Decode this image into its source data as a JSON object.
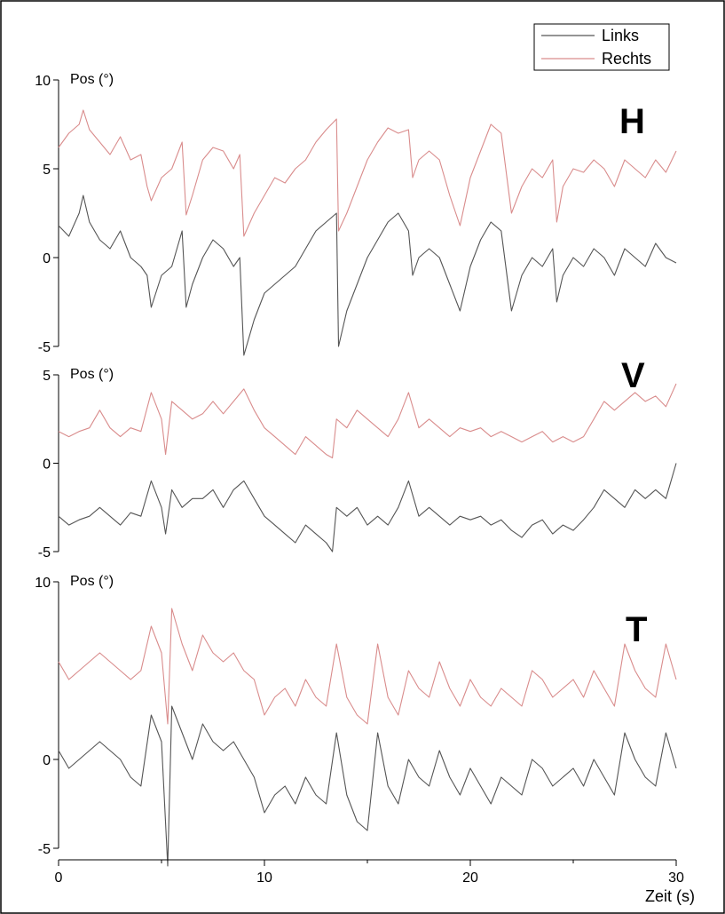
{
  "chart_data": {
    "type": "line",
    "xlabel": "Zeit (s)",
    "xlim": [
      0,
      30
    ],
    "xticks": [
      "0",
      "10",
      "20",
      "30"
    ],
    "legend": {
      "placement": "top-right",
      "entries": [
        {
          "name": "Links",
          "color": "#555555"
        },
        {
          "name": "Rechts",
          "color": "#d98c8c"
        }
      ]
    },
    "panels": [
      {
        "letter": "H",
        "ylabel": "Pos (°)",
        "ylim": [
          -5,
          10
        ],
        "yticks": [
          "-5",
          "0",
          "5",
          "10"
        ],
        "series": [
          {
            "name": "Rechts",
            "x": [
              0,
              0.5,
              1.0,
              1.2,
              1.5,
              2.0,
              2.5,
              3.0,
              3.5,
              4.0,
              4.3,
              4.5,
              5.0,
              5.5,
              6.0,
              6.2,
              6.5,
              7.0,
              7.5,
              8.0,
              8.5,
              8.8,
              9.0,
              9.5,
              10.0,
              10.5,
              11.0,
              11.5,
              12.0,
              12.5,
              13.0,
              13.5,
              13.6,
              14.0,
              14.5,
              15.0,
              15.5,
              16.0,
              16.5,
              17.0,
              17.2,
              17.5,
              18.0,
              18.5,
              19.0,
              19.5,
              20.0,
              20.5,
              21.0,
              21.5,
              22.0,
              22.5,
              23.0,
              23.5,
              24.0,
              24.2,
              24.5,
              25.0,
              25.5,
              26.0,
              26.5,
              27.0,
              27.5,
              28.0,
              28.5,
              29.0,
              29.5,
              30.0
            ],
            "y": [
              6.2,
              7.0,
              7.5,
              8.3,
              7.2,
              6.5,
              5.8,
              6.8,
              5.5,
              5.8,
              4.0,
              3.2,
              4.5,
              5.0,
              6.5,
              2.4,
              3.5,
              5.5,
              6.2,
              6.0,
              5.0,
              5.8,
              1.2,
              2.5,
              3.5,
              4.5,
              4.2,
              5.0,
              5.5,
              6.5,
              7.2,
              7.8,
              1.5,
              2.5,
              4.0,
              5.5,
              6.5,
              7.3,
              7.0,
              7.2,
              4.5,
              5.5,
              6.0,
              5.5,
              3.5,
              1.8,
              4.5,
              6.0,
              7.5,
              7.0,
              2.5,
              4.0,
              5.0,
              4.5,
              5.5,
              2.0,
              4.0,
              5.0,
              4.8,
              5.5,
              5.0,
              4.0,
              5.5,
              5.0,
              4.5,
              5.5,
              4.8,
              6.0
            ]
          },
          {
            "name": "Links",
            "x": [
              0,
              0.5,
              1.0,
              1.2,
              1.5,
              2.0,
              2.5,
              3.0,
              3.5,
              4.0,
              4.3,
              4.5,
              5.0,
              5.5,
              6.0,
              6.2,
              6.5,
              7.0,
              7.5,
              8.0,
              8.5,
              8.8,
              9.0,
              9.5,
              10.0,
              10.5,
              11.0,
              11.5,
              12.0,
              12.5,
              13.0,
              13.5,
              13.6,
              14.0,
              14.5,
              15.0,
              15.5,
              16.0,
              16.5,
              17.0,
              17.2,
              17.5,
              18.0,
              18.5,
              19.0,
              19.5,
              20.0,
              20.5,
              21.0,
              21.5,
              22.0,
              22.5,
              23.0,
              23.5,
              24.0,
              24.2,
              24.5,
              25.0,
              25.5,
              26.0,
              26.5,
              27.0,
              27.5,
              28.0,
              28.5,
              29.0,
              29.5,
              30.0
            ],
            "y": [
              1.8,
              1.2,
              2.5,
              3.5,
              2.0,
              1.0,
              0.5,
              1.5,
              0.0,
              -0.5,
              -1.0,
              -2.8,
              -1.0,
              -0.5,
              1.5,
              -2.8,
              -1.5,
              0.0,
              1.0,
              0.5,
              -0.5,
              0.0,
              -5.5,
              -3.5,
              -2.0,
              -1.5,
              -1.0,
              -0.5,
              0.5,
              1.5,
              2.0,
              2.5,
              -5.0,
              -3.0,
              -1.5,
              0.0,
              1.0,
              2.0,
              2.5,
              1.5,
              -1.0,
              0.0,
              0.5,
              0.0,
              -1.5,
              -3.0,
              -0.5,
              1.0,
              2.0,
              1.5,
              -3.0,
              -1.0,
              0.0,
              -0.5,
              0.5,
              -2.5,
              -1.0,
              0.0,
              -0.5,
              0.5,
              0.0,
              -1.0,
              0.5,
              0.0,
              -0.5,
              0.8,
              0.0,
              -0.3
            ]
          }
        ]
      },
      {
        "letter": "V",
        "ylabel": "Pos (°)",
        "ylim": [
          -5,
          5
        ],
        "yticks": [
          "-5",
          "0",
          "5"
        ],
        "series": [
          {
            "name": "Rechts",
            "x": [
              0,
              0.5,
              1.0,
              1.5,
              2.0,
              2.5,
              3.0,
              3.5,
              4.0,
              4.5,
              5.0,
              5.2,
              5.5,
              6.0,
              6.5,
              7.0,
              7.5,
              8.0,
              8.5,
              9.0,
              9.5,
              10.0,
              10.5,
              11.0,
              11.5,
              12.0,
              12.5,
              13.0,
              13.3,
              13.5,
              14.0,
              14.5,
              15.0,
              15.5,
              16.0,
              16.5,
              17.0,
              17.5,
              18.0,
              18.5,
              19.0,
              19.5,
              20.0,
              20.5,
              21.0,
              21.5,
              22.0,
              22.5,
              23.0,
              23.5,
              24.0,
              24.5,
              25.0,
              25.5,
              26.0,
              26.5,
              27.0,
              27.5,
              28.0,
              28.5,
              29.0,
              29.5,
              30.0
            ],
            "y": [
              1.8,
              1.5,
              1.8,
              2.0,
              3.0,
              2.0,
              1.5,
              2.0,
              1.8,
              4.0,
              2.5,
              0.5,
              3.5,
              3.0,
              2.5,
              2.8,
              3.5,
              2.8,
              3.5,
              4.2,
              3.0,
              2.0,
              1.5,
              1.0,
              0.5,
              1.5,
              1.0,
              0.5,
              0.3,
              2.5,
              2.0,
              3.0,
              2.5,
              2.0,
              1.5,
              2.5,
              4.0,
              2.0,
              2.5,
              2.0,
              1.5,
              2.0,
              1.8,
              2.0,
              1.5,
              1.8,
              1.5,
              1.2,
              1.5,
              1.8,
              1.2,
              1.5,
              1.2,
              1.5,
              2.5,
              3.5,
              3.0,
              3.5,
              4.0,
              3.5,
              3.8,
              3.2,
              4.5
            ]
          },
          {
            "name": "Links",
            "x": [
              0,
              0.5,
              1.0,
              1.5,
              2.0,
              2.5,
              3.0,
              3.5,
              4.0,
              4.5,
              5.0,
              5.2,
              5.5,
              6.0,
              6.5,
              7.0,
              7.5,
              8.0,
              8.5,
              9.0,
              9.5,
              10.0,
              10.5,
              11.0,
              11.5,
              12.0,
              12.5,
              13.0,
              13.3,
              13.5,
              14.0,
              14.5,
              15.0,
              15.5,
              16.0,
              16.5,
              17.0,
              17.5,
              18.0,
              18.5,
              19.0,
              19.5,
              20.0,
              20.5,
              21.0,
              21.5,
              22.0,
              22.5,
              23.0,
              23.5,
              24.0,
              24.5,
              25.0,
              25.5,
              26.0,
              26.5,
              27.0,
              27.5,
              28.0,
              28.5,
              29.0,
              29.5,
              30.0
            ],
            "y": [
              -3.0,
              -3.5,
              -3.2,
              -3.0,
              -2.5,
              -3.0,
              -3.5,
              -2.8,
              -3.0,
              -1.0,
              -2.5,
              -4.0,
              -1.5,
              -2.5,
              -2.0,
              -2.0,
              -1.5,
              -2.5,
              -1.5,
              -1.0,
              -2.0,
              -3.0,
              -3.5,
              -4.0,
              -4.5,
              -3.5,
              -4.0,
              -4.5,
              -5.0,
              -2.5,
              -3.0,
              -2.5,
              -3.5,
              -3.0,
              -3.5,
              -2.5,
              -1.0,
              -3.0,
              -2.5,
              -3.0,
              -3.5,
              -3.0,
              -3.2,
              -3.0,
              -3.5,
              -3.2,
              -3.8,
              -4.2,
              -3.5,
              -3.2,
              -4.0,
              -3.5,
              -3.8,
              -3.2,
              -2.5,
              -1.5,
              -2.0,
              -2.5,
              -1.5,
              -2.0,
              -1.5,
              -2.0,
              0.0
            ]
          }
        ]
      },
      {
        "letter": "T",
        "ylabel": "Pos (°)",
        "ylim": [
          -5,
          10
        ],
        "yticks": [
          "-5",
          "0",
          "10"
        ],
        "series": [
          {
            "name": "Rechts",
            "x": [
              0,
              0.5,
              1.0,
              1.5,
              2.0,
              2.5,
              3.0,
              3.5,
              4.0,
              4.5,
              5.0,
              5.3,
              5.5,
              6.0,
              6.5,
              7.0,
              7.5,
              8.0,
              8.5,
              9.0,
              9.5,
              10.0,
              10.5,
              11.0,
              11.5,
              12.0,
              12.5,
              13.0,
              13.5,
              14.0,
              14.5,
              15.0,
              15.5,
              16.0,
              16.5,
              17.0,
              17.5,
              18.0,
              18.5,
              19.0,
              19.5,
              20.0,
              20.5,
              21.0,
              21.5,
              22.0,
              22.5,
              23.0,
              23.5,
              24.0,
              24.5,
              25.0,
              25.5,
              26.0,
              26.5,
              27.0,
              27.5,
              28.0,
              28.5,
              29.0,
              29.5,
              30.0
            ],
            "y": [
              5.5,
              4.5,
              5.0,
              5.5,
              6.0,
              5.5,
              5.0,
              4.5,
              5.0,
              7.5,
              6.0,
              2.0,
              8.5,
              6.5,
              5.0,
              7.0,
              6.0,
              5.5,
              6.0,
              5.0,
              4.5,
              2.5,
              3.5,
              4.0,
              3.0,
              4.5,
              3.5,
              3.0,
              6.5,
              3.5,
              2.5,
              2.0,
              6.5,
              3.5,
              2.5,
              5.0,
              4.0,
              3.5,
              5.5,
              4.0,
              3.0,
              4.5,
              3.5,
              3.0,
              4.0,
              3.5,
              3.0,
              5.0,
              4.5,
              3.5,
              4.0,
              4.5,
              3.5,
              5.0,
              4.0,
              3.0,
              6.5,
              5.0,
              4.0,
              3.5,
              6.5,
              4.5
            ]
          },
          {
            "name": "Links",
            "x": [
              0,
              0.5,
              1.0,
              1.5,
              2.0,
              2.5,
              3.0,
              3.5,
              4.0,
              4.5,
              5.0,
              5.3,
              5.5,
              6.0,
              6.5,
              7.0,
              7.5,
              8.0,
              8.5,
              9.0,
              9.5,
              10.0,
              10.5,
              11.0,
              11.5,
              12.0,
              12.5,
              13.0,
              13.5,
              14.0,
              14.5,
              15.0,
              15.5,
              16.0,
              16.5,
              17.0,
              17.5,
              18.0,
              18.5,
              19.0,
              19.5,
              20.0,
              20.5,
              21.0,
              21.5,
              22.0,
              22.5,
              23.0,
              23.5,
              24.0,
              24.5,
              25.0,
              25.5,
              26.0,
              26.5,
              27.0,
              27.5,
              28.0,
              28.5,
              29.0,
              29.5,
              30.0
            ],
            "y": [
              0.5,
              -0.5,
              0.0,
              0.5,
              1.0,
              0.5,
              0.0,
              -1.0,
              -1.5,
              2.5,
              1.0,
              -6.0,
              3.0,
              1.5,
              0.0,
              2.0,
              1.0,
              0.5,
              1.0,
              0.0,
              -1.0,
              -3.0,
              -2.0,
              -1.5,
              -2.5,
              -1.0,
              -2.0,
              -2.5,
              1.5,
              -2.0,
              -3.5,
              -4.0,
              1.5,
              -1.5,
              -2.5,
              0.0,
              -1.0,
              -1.5,
              0.5,
              -1.0,
              -2.0,
              -0.5,
              -1.5,
              -2.5,
              -1.0,
              -1.5,
              -2.0,
              0.0,
              -0.5,
              -1.5,
              -1.0,
              -0.5,
              -1.5,
              0.0,
              -1.0,
              -2.0,
              1.5,
              0.0,
              -1.0,
              -1.5,
              1.5,
              -0.5
            ]
          }
        ]
      }
    ]
  }
}
